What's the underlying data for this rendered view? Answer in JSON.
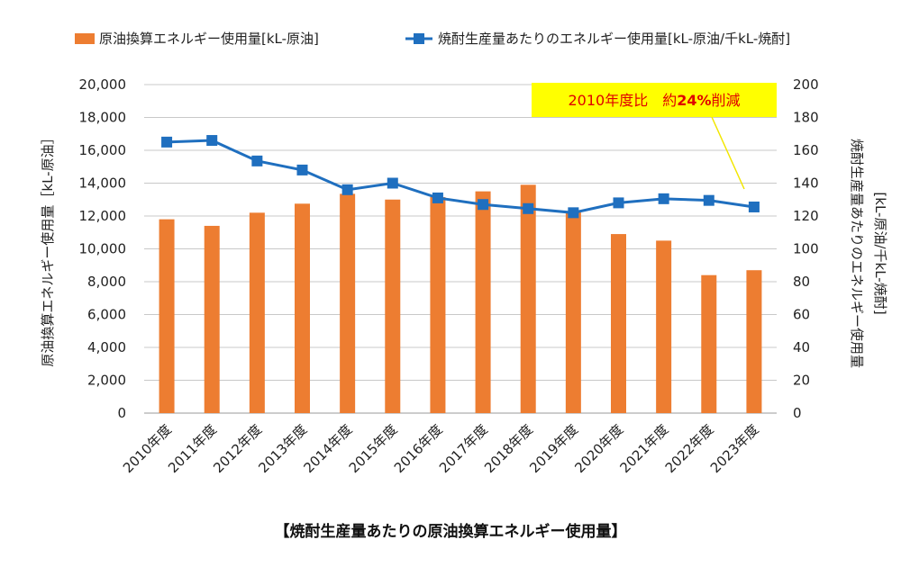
{
  "chart_data": {
    "type": "bar",
    "title": "【焼酎生産量あたりの原油換算エネルギー使用量】",
    "categories": [
      "2010年度",
      "2011年度",
      "2012年度",
      "2013年度",
      "2014年度",
      "2015年度",
      "2016年度",
      "2017年度",
      "2018年度",
      "2019年度",
      "2020年度",
      "2021年度",
      "2022年度",
      "2023年度"
    ],
    "series": [
      {
        "name": "原油換算エネルギー使用量[kL-原油]",
        "type": "bar",
        "axis": "left",
        "color": "#ed7d31",
        "values": [
          11800,
          11400,
          12200,
          12750,
          13350,
          13000,
          13150,
          13500,
          13900,
          12300,
          10900,
          10500,
          8400,
          8700
        ]
      },
      {
        "name": "焼酎生産量あたりのエネルギー使用量[kL-原油/千kL-焼酎]",
        "type": "line",
        "axis": "right",
        "color": "#1f6fbf",
        "marker": "square",
        "values": [
          165,
          166,
          153.5,
          148,
          136,
          140,
          131,
          127,
          124.5,
          122,
          128,
          130.5,
          129.5,
          125.5
        ]
      }
    ],
    "ylabel": "原油換算エネルギー使用量［kL-原油］",
    "ylabel_lines": [
      "原油換算エネルギー使用量［kL-原油］"
    ],
    "ylim": [
      0,
      20000
    ],
    "yticks": [
      "0",
      "2,000",
      "4,000",
      "6,000",
      "8,000",
      "10,000",
      "12,000",
      "14,000",
      "16,000",
      "18,000",
      "20,000"
    ],
    "y2label_lines": [
      "焼酎生産量あたりのエネルギー使用量",
      "[kL-原油/千kL-焼酎]"
    ],
    "y2lim": [
      0,
      200
    ],
    "y2ticks": [
      "0",
      "20",
      "40",
      "60",
      "80",
      "100",
      "120",
      "140",
      "160",
      "180",
      "200"
    ],
    "grid": true,
    "legend_position": "top",
    "annotation": {
      "prefix": "2010年度比　約",
      "emphasis": "24%",
      "suffix": "削減",
      "background": "#ffff00",
      "text_color": "#e00000"
    }
  }
}
